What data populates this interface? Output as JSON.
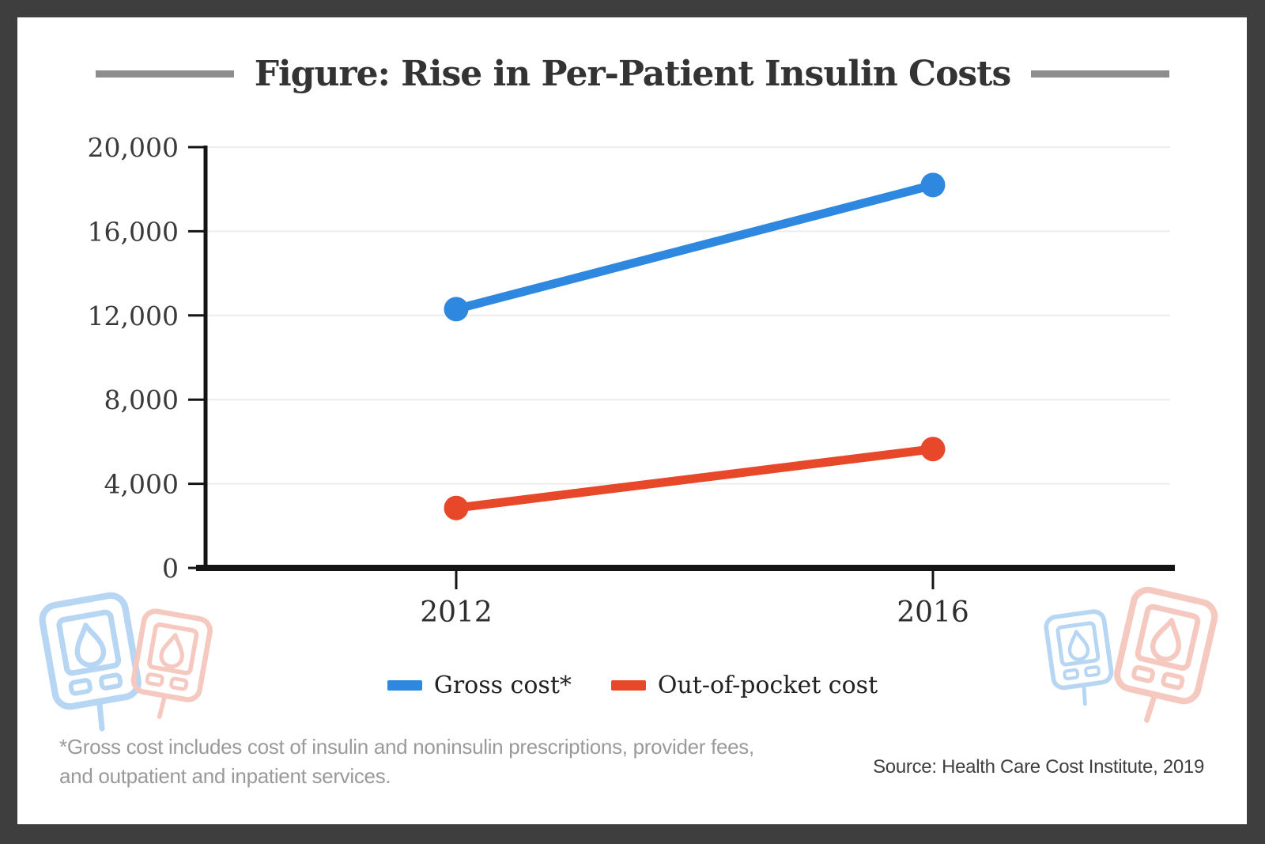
{
  "chart_data": {
    "type": "line",
    "title": "Figure: Rise in Per-Patient Insulin Costs",
    "categories": [
      "2012",
      "2016"
    ],
    "series": [
      {
        "name": "Gross cost*",
        "color": "#2f88e0",
        "values": [
          12300,
          18200
        ]
      },
      {
        "name": "Out-of-pocket cost",
        "color": "#e8482a",
        "values": [
          2850,
          5650
        ]
      }
    ],
    "xlabel": "",
    "ylabel": "",
    "ylim": [
      0,
      20000
    ],
    "ytick_step": 4000,
    "ytick_labels": [
      "0",
      "4,000",
      "8,000",
      "12,000",
      "16,000",
      "20,000"
    ],
    "grid": "horizontal",
    "legend_position": "bottom"
  },
  "footnote": "*Gross cost includes cost of insulin and noninsulin prescriptions, provider fees, and outpatient and inpatient services.",
  "source": "Source: Health Care Cost Institute, 2019",
  "colors": {
    "frame_border": "#3e3e3e",
    "card_background": "#ffffff",
    "title_text": "#333333",
    "title_dash": "#8d8d8d",
    "axis": "#141414",
    "gridline": "#ececec",
    "tick_text": "#3a3a3a",
    "footnote_text": "#9a9a9a",
    "source_text": "#3f3f3f",
    "icon_blue": "#b7d6f3",
    "icon_red": "#f6c9c0"
  },
  "icons": {
    "bottom_left": [
      "glucose-meter-blue",
      "glucose-meter-red"
    ],
    "bottom_right": [
      "glucose-meter-blue",
      "glucose-meter-red"
    ]
  }
}
